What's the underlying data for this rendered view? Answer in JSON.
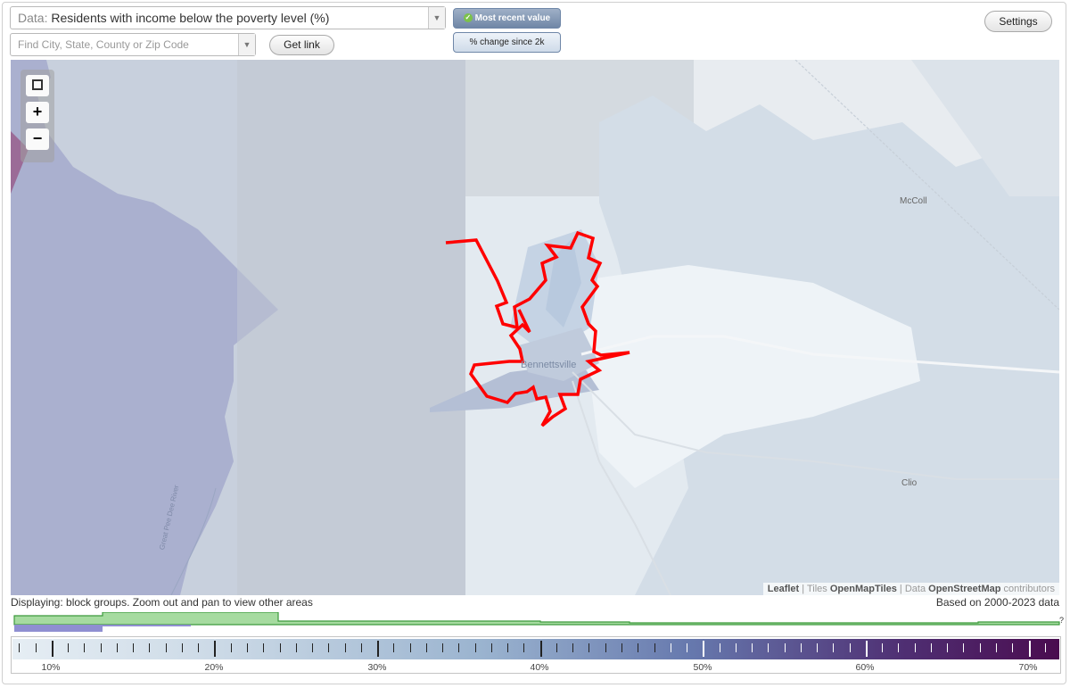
{
  "controls": {
    "data_prefix": "Data:",
    "data_value": "Residents with income below the poverty level (%)",
    "search_placeholder": "Find City, State, County or Zip Code",
    "get_link": "Get link",
    "most_recent": "Most recent value",
    "pct_change": "% change since 2k",
    "settings": "Settings"
  },
  "map": {
    "places": [
      "McColl",
      "Bennettsville",
      "Clio",
      "Great Pee Dee River"
    ],
    "zoom_in": "+",
    "zoom_out": "−"
  },
  "attribution": {
    "leaflet": "Leaflet",
    "tiles_prefix": "Tiles",
    "tiles": "OpenMapTiles",
    "data_prefix": "Data",
    "data_src": "OpenStreetMap",
    "suffix": "contributors"
  },
  "status": {
    "displaying": "Displaying: block groups. Zoom out and pan to view other areas",
    "based_on": "Based on 2000-2023 data",
    "question": "?"
  },
  "legend": {
    "labels": [
      "10%",
      "20%",
      "30%",
      "40%",
      "50%",
      "60%",
      "70%"
    ],
    "min_pct": 7.6,
    "max_pct": 72,
    "colors": {
      "low": "#e6eef4",
      "mid": "#7b8fba",
      "high": "#4a0c4f"
    }
  },
  "colors": {
    "boundary": "#ff0000",
    "histogram": "#7fc97f",
    "histogram_current": "#8f8fd1"
  }
}
